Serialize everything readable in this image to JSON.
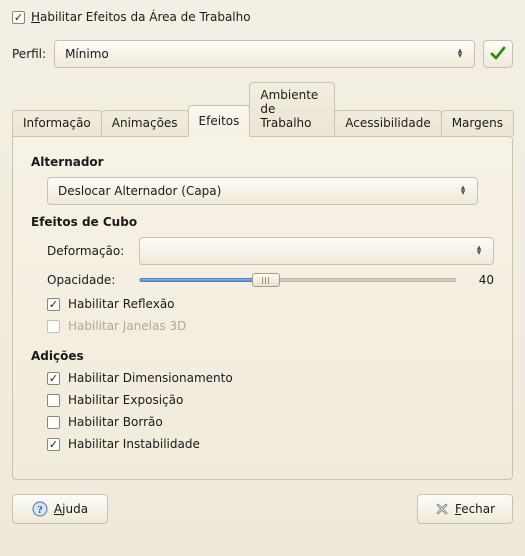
{
  "header": {
    "enable_effects_label": "Habilitar Efeitos da Área de Trabalho",
    "enable_effects_checked": true
  },
  "profile": {
    "label": "Perfil:",
    "selected": "Mínimo"
  },
  "tabs": [
    {
      "label": "Informação"
    },
    {
      "label": "Animações"
    },
    {
      "label": "Efeitos",
      "active": true
    },
    {
      "label": "Ambiente de Trabalho"
    },
    {
      "label": "Acessibilidade"
    },
    {
      "label": "Margens"
    }
  ],
  "sections": {
    "switcher_title": "Alternador",
    "switcher_selected": "Deslocar Alternador (Capa)",
    "cube_title": "Efeitos de Cubo",
    "deformation_label": "Deformação:",
    "deformation_selected": "",
    "opacity_label": "Opacidade:",
    "opacity_value": 40,
    "reflection_label": "Habilitar Reflexão",
    "reflection_checked": true,
    "windows3d_label": "Habilitar Janelas 3D",
    "windows3d_checked": false,
    "windows3d_enabled": false,
    "additions_title": "Adições",
    "scaling_label": "Habilitar Dimensionamento",
    "scaling_checked": true,
    "expose_label": "Habilitar Exposição",
    "expose_checked": false,
    "blur_label": "Habilitar Borrão",
    "blur_checked": false,
    "wobble_label": "Habilitar Instabilidade",
    "wobble_checked": true
  },
  "buttons": {
    "help_label": "Ajuda",
    "close_label": "Fechar"
  },
  "slider_pct": 40
}
